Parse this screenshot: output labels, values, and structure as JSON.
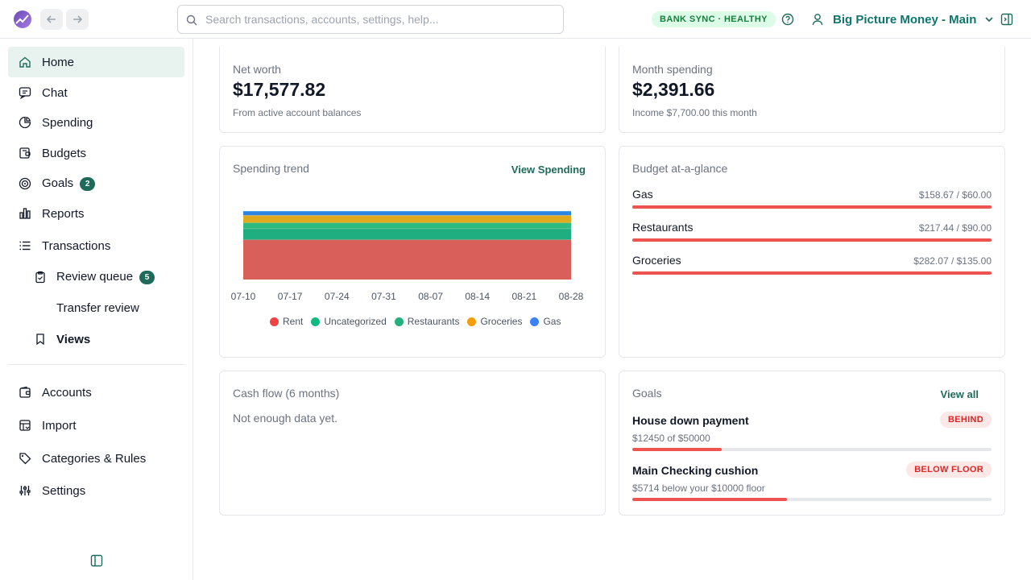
{
  "topbar": {
    "search_placeholder": "Search transactions, accounts, settings, help...",
    "sync_badge": "BANK SYNC · HEALTHY",
    "account_name": "Big Picture Money - Main"
  },
  "sidebar": {
    "items": [
      {
        "label": "Home",
        "icon": "home-icon"
      },
      {
        "label": "Chat",
        "icon": "chat-icon"
      },
      {
        "label": "Spending",
        "icon": "pie-chart-icon"
      },
      {
        "label": "Budgets",
        "icon": "wallet-icon"
      },
      {
        "label": "Goals",
        "icon": "target-icon",
        "badge": "2"
      },
      {
        "label": "Reports",
        "icon": "bar-chart-icon"
      },
      {
        "label": "Transactions",
        "icon": "list-icon"
      },
      {
        "label": "Review queue",
        "icon": "clipboard-icon",
        "badge": "5"
      },
      {
        "label": "Transfer review"
      },
      {
        "label": "Views",
        "icon": "bookmark-icon"
      },
      {
        "label": "Accounts",
        "icon": "wallet-icon"
      },
      {
        "label": "Import",
        "icon": "import-icon"
      },
      {
        "label": "Categories & Rules",
        "icon": "tag-icon"
      },
      {
        "label": "Settings",
        "icon": "sliders-icon"
      }
    ]
  },
  "net_worth": {
    "title": "Net worth",
    "value": "$17,577.82",
    "sub": "From active account balances"
  },
  "month_spending": {
    "title": "Month spending",
    "value": "$2,391.66",
    "sub": "Income $7,700.00 this month"
  },
  "spending_trend": {
    "title": "Spending trend",
    "link": "View Spending"
  },
  "chart_data": {
    "type": "area",
    "stacked": true,
    "x": [
      "07-10",
      "07-17",
      "07-24",
      "07-31",
      "08-07",
      "08-14",
      "08-21",
      "08-28"
    ],
    "series": [
      {
        "name": "Rent",
        "color": "#d9605a",
        "values": [
          1500,
          1500,
          1500,
          1500,
          1500,
          1500,
          1500,
          1500
        ]
      },
      {
        "name": "Uncategorized",
        "color": "#1fae7f",
        "values": [
          420,
          420,
          420,
          420,
          420,
          420,
          420,
          420
        ]
      },
      {
        "name": "Restaurants",
        "color": "#2fba7f",
        "values": [
          217.44,
          217.44,
          217.44,
          217.44,
          217.44,
          217.44,
          217.44,
          217.44
        ]
      },
      {
        "name": "Groceries",
        "color": "#e0a91e",
        "values": [
          282.07,
          282.07,
          282.07,
          282.07,
          282.07,
          282.07,
          282.07,
          282.07
        ]
      },
      {
        "name": "Gas",
        "color": "#2a86e0",
        "values": [
          158.67,
          158.67,
          158.67,
          158.67,
          158.67,
          158.67,
          158.67,
          158.67
        ]
      }
    ],
    "legend_position": "bottom",
    "legend_dot_colors": [
      "#ef4444",
      "#10b981",
      "#22b07d",
      "#f59e0b",
      "#3b82f6"
    ],
    "grid": false
  },
  "budget": {
    "title": "Budget at-a-glance",
    "rows": [
      {
        "label": "Gas",
        "value": "$158.67 / $60.00",
        "ratio": 1.0
      },
      {
        "label": "Restaurants",
        "value": "$217.44 / $90.00",
        "ratio": 1.0
      },
      {
        "label": "Groceries",
        "value": "$282.07 / $135.00",
        "ratio": 1.0
      }
    ]
  },
  "cash_flow": {
    "title": "Cash flow (6 months)",
    "empty": "Not enough data yet."
  },
  "goals": {
    "title": "Goals",
    "link": "View all",
    "items": [
      {
        "name": "House down payment",
        "status": "BEHIND",
        "sub": "$12450 of $50000",
        "progress": 0.249
      },
      {
        "name": "Main Checking cushion",
        "status": "BELOW FLOOR",
        "sub": "$5714 below your $10000 floor",
        "progress": 0.43
      }
    ]
  }
}
